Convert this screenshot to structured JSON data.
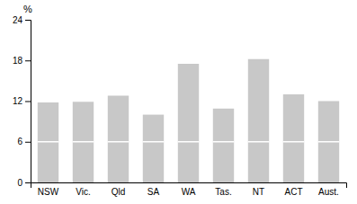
{
  "chart_data": {
    "type": "bar",
    "ylabel": "%",
    "categories": [
      "NSW",
      "Vic.",
      "Qld",
      "SA",
      "WA",
      "Tas.",
      "NT",
      "ACT",
      "Aust."
    ],
    "values": [
      11.8,
      11.9,
      12.8,
      10.0,
      17.5,
      10.9,
      18.2,
      13.0,
      12.0
    ],
    "dividers": [
      6.0,
      6.0,
      6.0,
      6.0,
      6.0,
      6.0,
      6.0,
      6.0,
      6.0
    ],
    "color": "#c8c8c8",
    "ylim": [
      0,
      24
    ],
    "yticks": [
      0,
      6,
      12,
      18,
      24
    ],
    "grid": false
  }
}
